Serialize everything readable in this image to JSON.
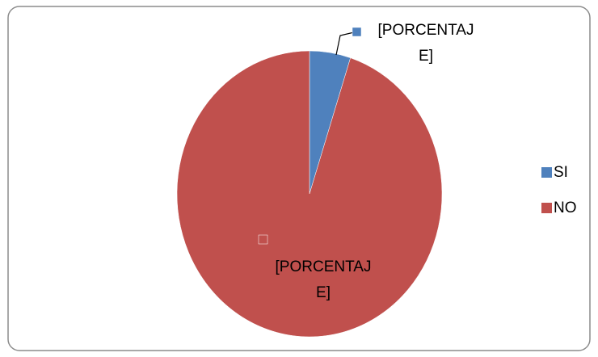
{
  "chart_data": {
    "type": "pie",
    "categories": [
      "SI",
      "NO"
    ],
    "values": [
      5,
      95
    ],
    "value_labels": [
      "[PORCENTAJE]",
      "[PORCENTAJE]"
    ],
    "colors": [
      "#4f81bd",
      "#c0504d"
    ],
    "legend": "right"
  }
}
